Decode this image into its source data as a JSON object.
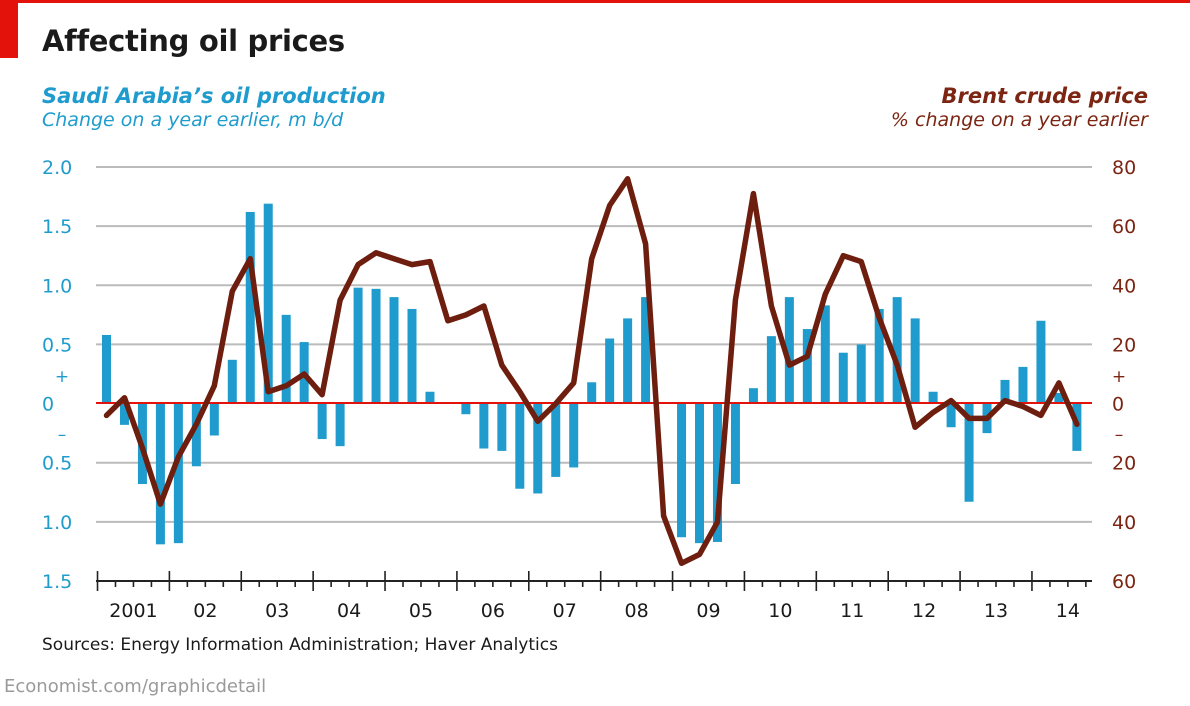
{
  "header": {
    "title": "Affecting oil prices",
    "left_title": "Saudi Arabia’s oil production",
    "left_subtitle": "Change on a year earlier, m b/d",
    "right_title": "Brent crude price",
    "right_subtitle": "% change on a year earlier"
  },
  "footer": {
    "source": "Sources: Energy Information Administration; Haver Analytics",
    "credit": "Economist.com/graphicdetail"
  },
  "colors": {
    "bars": "#1f9ccd",
    "line": "#6e1e0e",
    "zero_line": "#e3120b",
    "grid": "#bbbbbb",
    "left_axis_text": "#1f9ccd",
    "right_axis_text": "#7b2512"
  },
  "chart_data": {
    "type": "bar+line",
    "title": "Affecting oil prices",
    "x": {
      "start_year": 2001,
      "end_year": 2014,
      "tick_labels": [
        "2001",
        "02",
        "03",
        "04",
        "05",
        "06",
        "07",
        "08",
        "09",
        "10",
        "11",
        "12",
        "13",
        "14"
      ]
    },
    "left_axis": {
      "label": "Saudi Arabia’s oil production, change on a year earlier, m b/d",
      "ylim": [
        -1.5,
        2.0
      ],
      "ticks": [
        {
          "value": 2.0,
          "label": "2.0"
        },
        {
          "value": 1.5,
          "label": "1.5"
        },
        {
          "value": 1.0,
          "label": "1.0"
        },
        {
          "value": 0.5,
          "label": "0.5"
        },
        {
          "value": 0,
          "label": "0"
        },
        {
          "value": -0.5,
          "label": "0.5"
        },
        {
          "value": -1.0,
          "label": "1.0"
        },
        {
          "value": -1.5,
          "label": "1.5"
        }
      ],
      "plus_sign": "+",
      "minus_sign": "–"
    },
    "right_axis": {
      "label": "Brent crude price, % change on a year earlier",
      "ylim": [
        -60,
        80
      ],
      "ticks": [
        {
          "value": 80,
          "label": "80"
        },
        {
          "value": 60,
          "label": "60"
        },
        {
          "value": 40,
          "label": "40"
        },
        {
          "value": 20,
          "label": "20"
        },
        {
          "value": 0,
          "label": "0"
        },
        {
          "value": -20,
          "label": "20"
        },
        {
          "value": -40,
          "label": "40"
        },
        {
          "value": -60,
          "label": "60"
        }
      ],
      "plus_sign": "+",
      "minus_sign": "–"
    },
    "series": [
      {
        "name": "Saudi Arabia’s oil production",
        "axis": "left",
        "kind": "bar",
        "frequency": "quarterly",
        "start": "2001Q1",
        "values": [
          0.58,
          -0.18,
          -0.68,
          -1.19,
          -1.18,
          -0.53,
          -0.27,
          0.37,
          1.62,
          1.69,
          0.75,
          0.52,
          -0.3,
          -0.36,
          0.98,
          0.97,
          0.9,
          0.8,
          0.1,
          0.0,
          -0.09,
          -0.38,
          -0.4,
          -0.72,
          -0.76,
          -0.62,
          -0.54,
          0.18,
          0.55,
          0.72,
          0.9,
          0.0,
          -1.13,
          -1.18,
          -1.17,
          -0.68,
          0.13,
          0.57,
          0.9,
          0.63,
          0.83,
          0.43,
          0.5,
          0.8,
          0.9,
          0.72,
          0.1,
          -0.2,
          -0.83,
          -0.25,
          0.2,
          0.31,
          0.7,
          0.09,
          -0.4
        ]
      },
      {
        "name": "Brent crude price",
        "axis": "right",
        "kind": "line",
        "frequency": "quarterly",
        "start": "2001Q1",
        "values": [
          -4,
          2,
          -15,
          -34,
          -18,
          -7,
          6,
          38,
          49,
          4,
          6,
          10,
          3,
          35,
          47,
          51,
          49,
          47,
          48,
          28,
          30,
          33,
          13,
          4,
          -6,
          0,
          7,
          49,
          67,
          76,
          54,
          -38,
          -54,
          -51,
          -40,
          35,
          71,
          33,
          13,
          16,
          37,
          50,
          48,
          29,
          13,
          -8,
          -3,
          1,
          -5,
          -5,
          1,
          -1,
          -4,
          7,
          -7
        ]
      }
    ],
    "grid": true,
    "legend": "none"
  }
}
